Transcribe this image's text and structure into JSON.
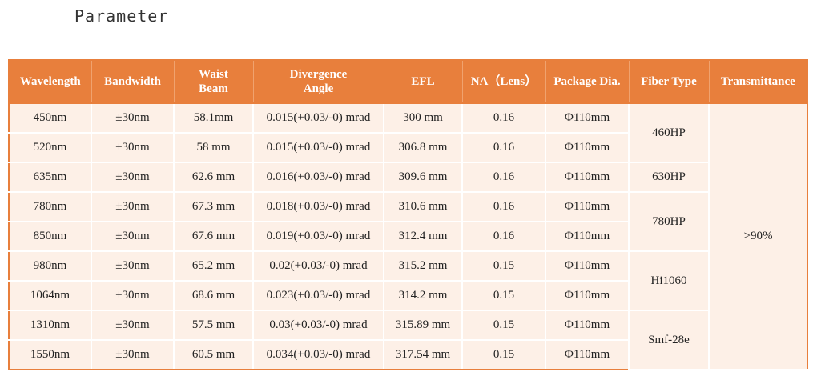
{
  "section_title": "Parameter",
  "table": {
    "headers": {
      "wavelength": "Wavelength",
      "bandwidth": "Bandwidth",
      "waist_beam": [
        "Waist",
        "Beam"
      ],
      "divergence_angle": [
        "Divergence",
        "Angle"
      ],
      "efl": "EFL",
      "na": "NA（Lens）",
      "package_dia": "Package Dia.",
      "fiber_type": "Fiber Type",
      "transmittance": "Transmittance"
    },
    "rows": [
      {
        "wavelength": "450nm",
        "bandwidth": "±30nm",
        "waist_beam": "58.1mm",
        "divergence": "0.015(+0.03/-0) mrad",
        "efl": "300 mm",
        "na": "0.16",
        "package_dia": "Φ110mm"
      },
      {
        "wavelength": "520nm",
        "bandwidth": "±30nm",
        "waist_beam": "58 mm",
        "divergence": "0.015(+0.03/-0) mrad",
        "efl": "306.8 mm",
        "na": "0.16",
        "package_dia": "Φ110mm"
      },
      {
        "wavelength": "635nm",
        "bandwidth": "±30nm",
        "waist_beam": "62.6 mm",
        "divergence": "0.016(+0.03/-0) mrad",
        "efl": "309.6 mm",
        "na": "0.16",
        "package_dia": "Φ110mm"
      },
      {
        "wavelength": "780nm",
        "bandwidth": "±30nm",
        "waist_beam": "67.3 mm",
        "divergence": "0.018(+0.03/-0) mrad",
        "efl": "310.6 mm",
        "na": "0.16",
        "package_dia": "Φ110mm"
      },
      {
        "wavelength": "850nm",
        "bandwidth": "±30nm",
        "waist_beam": "67.6 mm",
        "divergence": "0.019(+0.03/-0) mrad",
        "efl": "312.4 mm",
        "na": "0.16",
        "package_dia": "Φ110mm"
      },
      {
        "wavelength": "980nm",
        "bandwidth": "±30nm",
        "waist_beam": "65.2 mm",
        "divergence": "0.02(+0.03/-0) mrad",
        "efl": "315.2 mm",
        "na": "0.15",
        "package_dia": "Φ110mm"
      },
      {
        "wavelength": "1064nm",
        "bandwidth": "±30nm",
        "waist_beam": "68.6 mm",
        "divergence": "0.023(+0.03/-0) mrad",
        "efl": "314.2 mm",
        "na": "0.15",
        "package_dia": "Φ110mm"
      },
      {
        "wavelength": "1310nm",
        "bandwidth": "±30nm",
        "waist_beam": "57.5 mm",
        "divergence": "0.03(+0.03/-0) mrad",
        "efl": "315.89 mm",
        "na": "0.15",
        "package_dia": "Φ110mm"
      },
      {
        "wavelength": "1550nm",
        "bandwidth": "±30nm",
        "waist_beam": "60.5 mm",
        "divergence": "0.034(+0.03/-0) mrad",
        "efl": "317.54 mm",
        "na": "0.15",
        "package_dia": "Φ110mm"
      }
    ],
    "fiber_types": [
      "460HP",
      "630HP",
      "780HP",
      "Hi1060",
      "Smf-28e"
    ],
    "transmittance": ">90%"
  },
  "colors": {
    "header_bg": "#e87f3c",
    "cell_bg": "#fdf0e7",
    "header_text": "#ffffff"
  }
}
